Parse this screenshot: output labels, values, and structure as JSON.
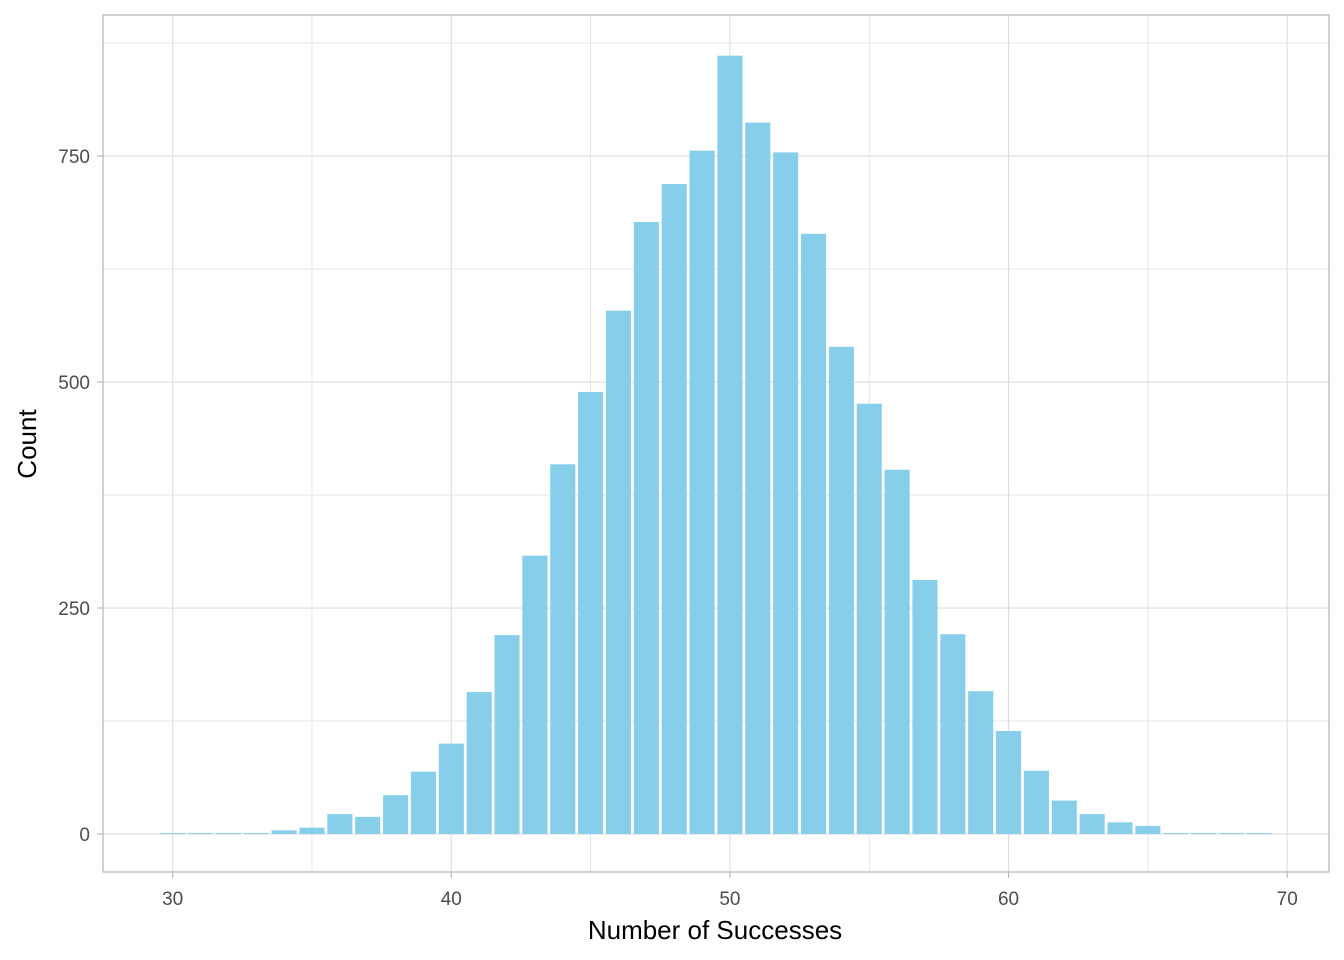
{
  "chart_data": {
    "type": "bar",
    "title": "",
    "xlabel": "Number of Successes",
    "ylabel": "Count",
    "x": [
      30,
      31,
      32,
      33,
      34,
      35,
      36,
      37,
      38,
      39,
      40,
      41,
      42,
      43,
      44,
      45,
      46,
      47,
      48,
      49,
      50,
      51,
      52,
      53,
      54,
      55,
      56,
      57,
      58,
      59,
      60,
      61,
      62,
      63,
      64,
      65,
      66,
      67,
      68,
      69
    ],
    "values": [
      1,
      1,
      1,
      1,
      4,
      7,
      22,
      19,
      43,
      69,
      100,
      157,
      220,
      308,
      409,
      489,
      579,
      677,
      719,
      756,
      861,
      787,
      754,
      664,
      539,
      476,
      403,
      281,
      221,
      158,
      114,
      70,
      37,
      22,
      13,
      9,
      1,
      1,
      1,
      1
    ],
    "xlim": [
      27.5,
      71.5
    ],
    "ylim": [
      -42,
      906
    ],
    "x_ticks": [
      30,
      40,
      50,
      60,
      70
    ],
    "y_ticks": [
      0,
      250,
      500,
      750
    ],
    "x_tick_labels": [
      "30",
      "40",
      "50",
      "60",
      "70"
    ],
    "y_tick_labels": [
      "0",
      "250",
      "500",
      "750"
    ],
    "grid": true,
    "bar_color": "#87CEEB",
    "grid_color": "#dedede",
    "panel_border_color": "#b3b3b3"
  }
}
